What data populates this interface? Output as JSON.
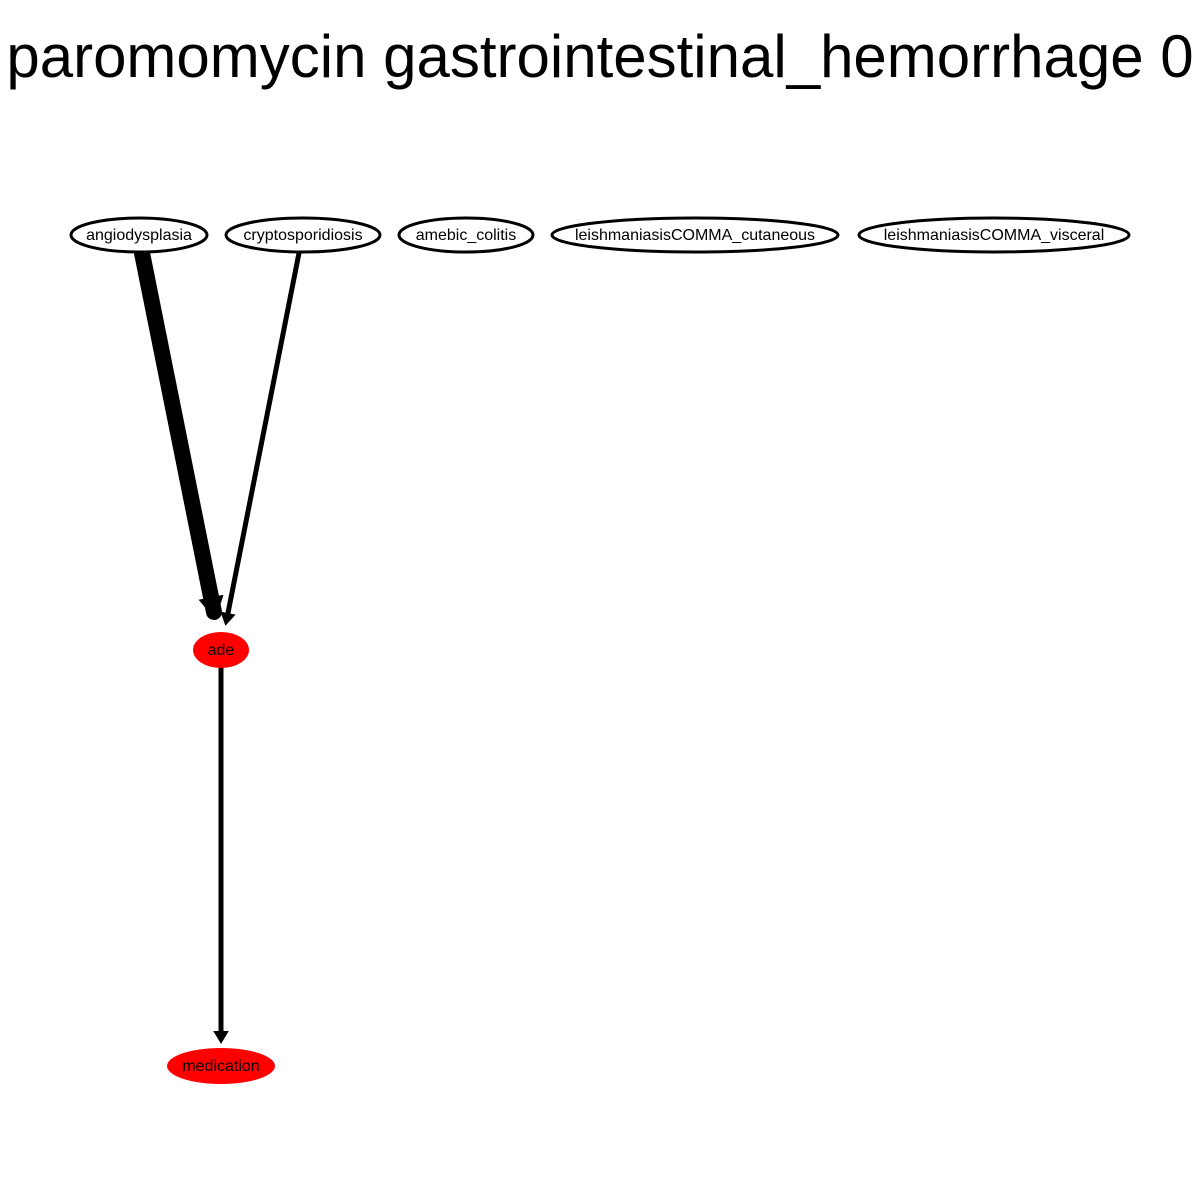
{
  "title": "paromomycin gastrointestinal_hemorrhage 0",
  "colors": {
    "background": "#ffffff",
    "edge": "#000000",
    "outline": "#000000",
    "highlight_fill": "#ff0000",
    "plain_fill": "#ffffff"
  },
  "nodes": [
    {
      "id": "angiodysplasia",
      "label": "angiodysplasia",
      "highlighted": false
    },
    {
      "id": "cryptosporidiosis",
      "label": "cryptosporidiosis",
      "highlighted": false
    },
    {
      "id": "amebic_colitis",
      "label": "amebic_colitis",
      "highlighted": false
    },
    {
      "id": "leish_cut",
      "label": "leishmaniasisCOMMA_cutaneous",
      "highlighted": false
    },
    {
      "id": "leish_vis",
      "label": "leishmaniasisCOMMA_visceral",
      "highlighted": false
    },
    {
      "id": "ade",
      "label": "ade",
      "highlighted": true
    },
    {
      "id": "medication",
      "label": "medication",
      "highlighted": true
    }
  ],
  "edges": [
    {
      "from": "angiodysplasia",
      "to": "ade",
      "weight": "heavy"
    },
    {
      "from": "cryptosporidiosis",
      "to": "ade",
      "weight": "normal"
    },
    {
      "from": "ade",
      "to": "medication",
      "weight": "normal"
    }
  ]
}
